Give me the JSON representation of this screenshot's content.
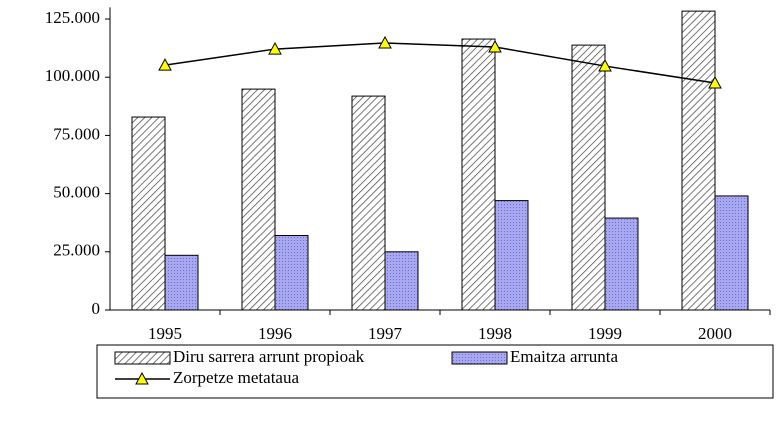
{
  "chart_data": {
    "type": "bar",
    "categories": [
      "1995",
      "1996",
      "1997",
      "1998",
      "1999",
      "2000"
    ],
    "series": [
      {
        "name": "Diru sarrera arrunt propioak",
        "type": "bar",
        "color": "#ffffff",
        "values": [
          82900,
          94900,
          91900,
          116400,
          113800,
          128400
        ]
      },
      {
        "name": "Emaitza arrunta",
        "type": "bar",
        "color": "#a8a8f0",
        "values": [
          23500,
          32000,
          25000,
          47000,
          39500,
          49000
        ]
      },
      {
        "name": "Zorpetze metataua",
        "type": "line",
        "color": "#000000",
        "marker_color": "#ffff00",
        "values": [
          105200,
          112100,
          114700,
          113000,
          104800,
          97500
        ]
      }
    ],
    "ylim": [
      0,
      130000
    ],
    "yticks": [
      0,
      {
        "value": 25000,
        "label": "25.000"
      },
      {
        "value": 50000,
        "label": "50.000"
      },
      {
        "value": 75000,
        "label": "75.000"
      },
      {
        "value": 100000,
        "label": "100.000"
      },
      {
        "value": 125000,
        "label": "125.000"
      }
    ],
    "grid": false
  }
}
